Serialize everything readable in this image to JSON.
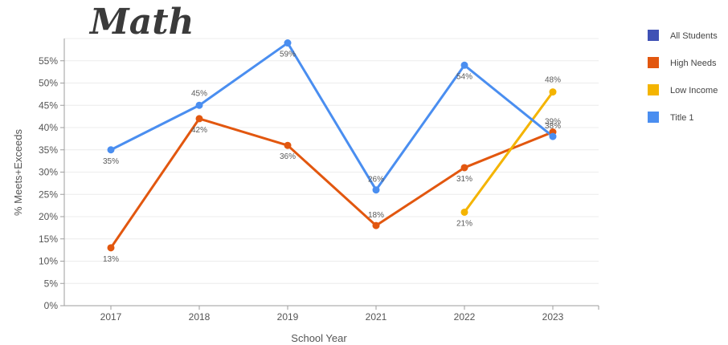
{
  "chart_data": {
    "type": "line",
    "title": "Math",
    "xlabel": "School Year",
    "ylabel": "% Meets+Exceeds",
    "categories": [
      "2017",
      "2018",
      "2019",
      "2021",
      "2022",
      "2023"
    ],
    "yticks": [
      "0%",
      "5%",
      "10%",
      "15%",
      "20%",
      "25%",
      "30%",
      "35%",
      "40%",
      "45%",
      "50%",
      "55%"
    ],
    "ylim": [
      0,
      60
    ],
    "grid": true,
    "legend_position": "right",
    "series": [
      {
        "name": "All Students",
        "color": "#3f51b5",
        "values": [
          null,
          null,
          null,
          null,
          null,
          null
        ],
        "labels": [
          null,
          null,
          null,
          null,
          null,
          null
        ]
      },
      {
        "name": "High Needs",
        "color": "#e2570f",
        "values": [
          13,
          42,
          36,
          18,
          31,
          39
        ],
        "labels": [
          "13%",
          "42%",
          "36%",
          "18%",
          "31%",
          "39%"
        ]
      },
      {
        "name": "Low Income",
        "color": "#f4b400",
        "values": [
          null,
          null,
          null,
          null,
          21,
          48
        ],
        "labels": [
          null,
          null,
          null,
          null,
          "21%",
          "48%"
        ]
      },
      {
        "name": "Title 1",
        "color": "#4a8ef0",
        "values": [
          35,
          45,
          59,
          26,
          54,
          38
        ],
        "labels": [
          "35%",
          "45%",
          "59%",
          "26%",
          "54%",
          "38%"
        ]
      }
    ]
  }
}
